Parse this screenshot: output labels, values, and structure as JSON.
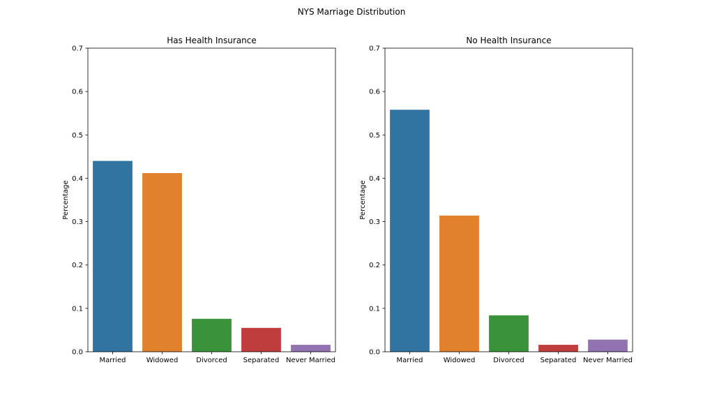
{
  "figure": {
    "title": "NYS Marriage Distribution"
  },
  "chart_data": [
    {
      "type": "bar",
      "title": "Has Health Insurance",
      "xlabel": "",
      "ylabel": "Percentage",
      "ylim": [
        0,
        0.7
      ],
      "yticks": [
        "0.0",
        "0.1",
        "0.2",
        "0.3",
        "0.4",
        "0.5",
        "0.6",
        "0.7"
      ],
      "categories": [
        "Married",
        "Widowed",
        "Divorced",
        "Separated",
        "Never Married"
      ],
      "values": [
        0.44,
        0.412,
        0.076,
        0.055,
        0.016
      ],
      "colors": [
        "#3274a1",
        "#e1812c",
        "#3a923a",
        "#c03d3e",
        "#9372b2"
      ],
      "grid": false,
      "legend": "none"
    },
    {
      "type": "bar",
      "title": "No Health Insurance",
      "xlabel": "",
      "ylabel": "Percentage",
      "ylim": [
        0,
        0.7
      ],
      "yticks": [
        "0.0",
        "0.1",
        "0.2",
        "0.3",
        "0.4",
        "0.5",
        "0.6",
        "0.7"
      ],
      "categories": [
        "Married",
        "Widowed",
        "Divorced",
        "Separated",
        "Never Married"
      ],
      "values": [
        0.558,
        0.314,
        0.084,
        0.016,
        0.028
      ],
      "colors": [
        "#3274a1",
        "#e1812c",
        "#3a923a",
        "#c03d3e",
        "#9372b2"
      ],
      "grid": false,
      "legend": "none"
    }
  ]
}
